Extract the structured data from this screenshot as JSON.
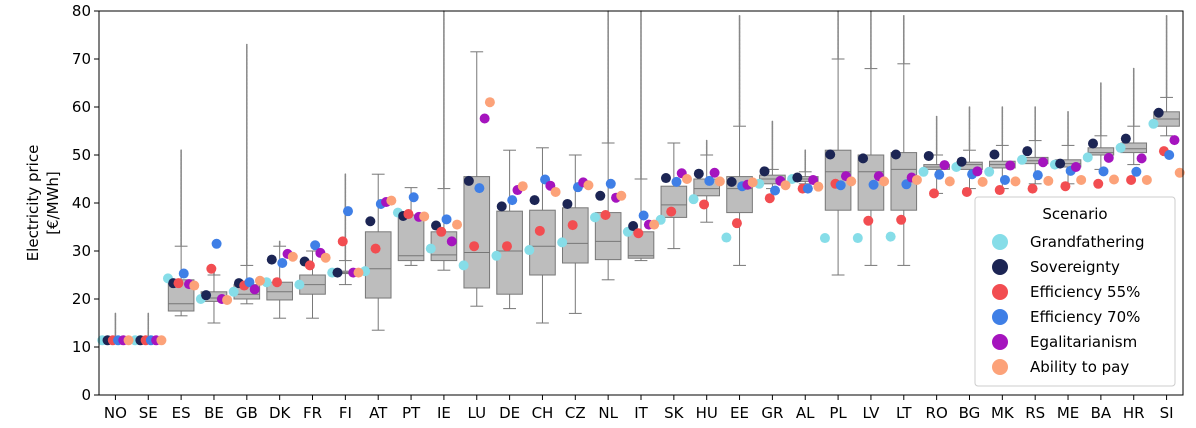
{
  "chart_data": {
    "type": "box",
    "title": "",
    "xlabel": "",
    "ylabel_lines": [
      "Electricity price",
      "[€/MWh]"
    ],
    "ylim": [
      0,
      80
    ],
    "yticks": [
      0,
      10,
      20,
      30,
      40,
      50,
      60,
      70,
      80
    ],
    "categories": [
      "NO",
      "SE",
      "ES",
      "BE",
      "GB",
      "DK",
      "FR",
      "FI",
      "AT",
      "PT",
      "IE",
      "LU",
      "DE",
      "CH",
      "CZ",
      "NL",
      "IT",
      "SK",
      "HU",
      "EE",
      "GR",
      "AL",
      "PL",
      "LV",
      "LT",
      "RO",
      "BG",
      "MK",
      "RS",
      "ME",
      "BA",
      "HR",
      "SI"
    ],
    "boxes": [
      {
        "q1": 11.3,
        "median": 11.4,
        "q3": 11.6,
        "whislo": 11.0,
        "whishi": 12.0,
        "fliermax": 17
      },
      {
        "q1": 11.3,
        "median": 11.4,
        "q3": 11.6,
        "whislo": 11.0,
        "whishi": 12.0,
        "fliermax": 17
      },
      {
        "q1": 17.5,
        "median": 19,
        "q3": 24,
        "whislo": 16.5,
        "whishi": 31,
        "fliermax": 51
      },
      {
        "q1": 19.5,
        "median": 20.2,
        "q3": 21.5,
        "whislo": 15,
        "whishi": 25,
        "fliermax": 26
      },
      {
        "q1": 20,
        "median": 21,
        "q3": 23,
        "whislo": 19,
        "whishi": 27,
        "fliermax": 73
      },
      {
        "q1": 19.8,
        "median": 21.5,
        "q3": 23.5,
        "whislo": 16,
        "whishi": 31,
        "fliermax": 32
      },
      {
        "q1": 21,
        "median": 23,
        "q3": 25,
        "whislo": 16,
        "whishi": 30,
        "fliermax": 30
      },
      {
        "q1": 25.3,
        "median": 25.5,
        "q3": 25.8,
        "whislo": 23,
        "whishi": 28,
        "fliermax": 46
      },
      {
        "q1": 20.2,
        "median": 26.3,
        "q3": 34,
        "whislo": 13.5,
        "whishi": 46,
        "fliermax": 46
      },
      {
        "q1": 28,
        "median": 29,
        "q3": 37.5,
        "whislo": 27,
        "whishi": 43.2,
        "fliermax": 43.2
      },
      {
        "q1": 28,
        "median": 29.2,
        "q3": 34,
        "whislo": 26,
        "whishi": 43,
        "fliermax": 80
      },
      {
        "q1": 22.3,
        "median": 29.7,
        "q3": 45.5,
        "whislo": 18.5,
        "whishi": 71.5,
        "fliermax": 71.5
      },
      {
        "q1": 21,
        "median": 30,
        "q3": 38.3,
        "whislo": 18,
        "whishi": 51,
        "fliermax": 51
      },
      {
        "q1": 25,
        "median": 31,
        "q3": 38.5,
        "whislo": 15,
        "whishi": 51.5,
        "fliermax": 51.5
      },
      {
        "q1": 27.5,
        "median": 31.6,
        "q3": 39,
        "whislo": 17,
        "whishi": 50,
        "fliermax": 50
      },
      {
        "q1": 28.2,
        "median": 32,
        "q3": 38,
        "whislo": 24,
        "whishi": 52.5,
        "fliermax": 80
      },
      {
        "q1": 28.5,
        "median": 29,
        "q3": 34,
        "whislo": 28,
        "whishi": 45,
        "fliermax": 80
      },
      {
        "q1": 37,
        "median": 39.6,
        "q3": 43.5,
        "whislo": 30.5,
        "whishi": 52.5,
        "fliermax": 52.5
      },
      {
        "q1": 41.5,
        "median": 43,
        "q3": 45,
        "whislo": 36,
        "whishi": 50,
        "fliermax": 53
      },
      {
        "q1": 38,
        "median": 43,
        "q3": 45.5,
        "whislo": 27,
        "whishi": 56,
        "fliermax": 79
      },
      {
        "q1": 44,
        "median": 45,
        "q3": 45.8,
        "whislo": 43,
        "whishi": 47,
        "fliermax": 57
      },
      {
        "q1": 44.5,
        "median": 45,
        "q3": 45.5,
        "whislo": 44,
        "whishi": 46.5,
        "fliermax": 51
      },
      {
        "q1": 38.5,
        "median": 46.5,
        "q3": 51,
        "whislo": 25,
        "whishi": 70,
        "fliermax": 80
      },
      {
        "q1": 38.5,
        "median": 46.5,
        "q3": 50,
        "whislo": 27,
        "whishi": 68,
        "fliermax": 80
      },
      {
        "q1": 38.5,
        "median": 47,
        "q3": 50.5,
        "whislo": 27,
        "whishi": 69,
        "fliermax": 79
      },
      {
        "q1": 47,
        "median": 47.5,
        "q3": 48,
        "whislo": 42,
        "whishi": 50,
        "fliermax": 58
      },
      {
        "q1": 47,
        "median": 48,
        "q3": 48.5,
        "whislo": 43,
        "whishi": 51,
        "fliermax": 60
      },
      {
        "q1": 47.3,
        "median": 48,
        "q3": 48.7,
        "whislo": 43,
        "whishi": 52,
        "fliermax": 60
      },
      {
        "q1": 48.2,
        "median": 48.8,
        "q3": 49.5,
        "whislo": 44,
        "whishi": 53,
        "fliermax": 60
      },
      {
        "q1": 47.5,
        "median": 48.2,
        "q3": 49,
        "whislo": 44,
        "whishi": 52,
        "fliermax": 59
      },
      {
        "q1": 50,
        "median": 50.5,
        "q3": 51.5,
        "whislo": 47,
        "whishi": 54,
        "fliermax": 65
      },
      {
        "q1": 50.5,
        "median": 51.3,
        "q3": 52.5,
        "whislo": 48,
        "whishi": 56,
        "fliermax": 68
      },
      {
        "q1": 56,
        "median": 57.5,
        "q3": 59,
        "whislo": 54,
        "whishi": 62,
        "fliermax": 79
      }
    ],
    "series": [
      {
        "name": "Grandfathering",
        "color": "#86dde8",
        "values": [
          11.4,
          11.4,
          24.3,
          20,
          21.5,
          23.5,
          23,
          25.5,
          25.8,
          38,
          30.5,
          27,
          29,
          30.2,
          31.8,
          37,
          34,
          36.5,
          40.8,
          32.8,
          44,
          45,
          32.7,
          32.7,
          33,
          46.5,
          47.5,
          46.5,
          49,
          48,
          49.5,
          51.5,
          56.5
        ]
      },
      {
        "name": "Sovereignty",
        "color": "#1c2554",
        "values": [
          11.4,
          11.4,
          23.3,
          20.8,
          23.3,
          28.2,
          27.8,
          25.5,
          36.2,
          37.3,
          35.3,
          44.6,
          39.3,
          40.6,
          39.8,
          41.5,
          35.2,
          45.2,
          46.1,
          44.4,
          46.6,
          45.3,
          50.1,
          49.3,
          50.1,
          49.8,
          48.6,
          50.1,
          50.8,
          48.2,
          52.4,
          53.4,
          58.8
        ]
      },
      {
        "name": "Efficiency 55%",
        "color": "#f24d51",
        "values": [
          11.4,
          11.4,
          23.3,
          26.3,
          22.8,
          23.5,
          27,
          32,
          30.5,
          37.7,
          34,
          31,
          31,
          34.2,
          35.4,
          37.5,
          33.7,
          38.2,
          39.7,
          35.8,
          41,
          43,
          44,
          36.3,
          36.5,
          42,
          42.3,
          42.7,
          43,
          43.5,
          44,
          44.8,
          50.8
        ]
      },
      {
        "name": "Efficiency 70%",
        "color": "#3f7fe6",
        "values": [
          11.4,
          11.4,
          25.3,
          31.5,
          23.5,
          27.5,
          31.2,
          38.3,
          39.8,
          41.2,
          36.6,
          43.1,
          40.6,
          44.9,
          43.3,
          44,
          37.4,
          44.4,
          44.6,
          43.5,
          42.6,
          43,
          43.7,
          43.8,
          43.9,
          45.9,
          46,
          44.8,
          45.8,
          46.7,
          46.6,
          46.5,
          50
        ]
      },
      {
        "name": "Egalitarianism",
        "color": "#a514be",
        "values": [
          11.4,
          11.4,
          23.1,
          20,
          22,
          29.4,
          29.6,
          25.5,
          40.2,
          37.1,
          32,
          57.6,
          42.7,
          43.6,
          44.3,
          41.1,
          35.5,
          46.2,
          46.3,
          43.8,
          44.6,
          44.8,
          45.6,
          45.6,
          45.3,
          47.9,
          46.6,
          47.8,
          48.5,
          47.5,
          49.4,
          49.3,
          53.1
        ]
      },
      {
        "name": "Ability to pay",
        "color": "#fca279",
        "values": [
          11.4,
          11.4,
          22.8,
          19.8,
          23.8,
          28.8,
          28.6,
          25.5,
          40.5,
          37.2,
          35.5,
          61,
          43.5,
          42.3,
          43.7,
          41.5,
          35.5,
          45,
          44.5,
          44.3,
          43.7,
          43.4,
          44.5,
          44.5,
          44.8,
          44.5,
          44.4,
          44.5,
          44.6,
          44.8,
          44.9,
          44.8,
          46.3
        ]
      }
    ],
    "legend": {
      "title": "Scenario",
      "position": "lower-right"
    }
  }
}
